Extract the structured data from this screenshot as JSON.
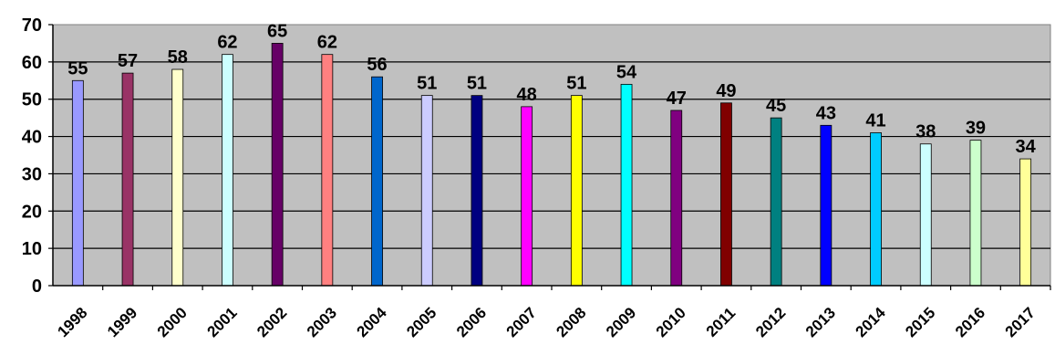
{
  "chart_data": {
    "type": "bar",
    "categories": [
      "1998",
      "1999",
      "2000",
      "2001",
      "2002",
      "2003",
      "2004",
      "2005",
      "2006",
      "2007",
      "2008",
      "2009",
      "2010",
      "2011",
      "2012",
      "2013",
      "2014",
      "2015",
      "2016",
      "2017"
    ],
    "values": [
      55,
      57,
      58,
      62,
      65,
      62,
      56,
      51,
      51,
      48,
      51,
      54,
      47,
      49,
      45,
      43,
      41,
      38,
      39,
      34
    ],
    "colors": [
      "#9999ff",
      "#993366",
      "#ffffcc",
      "#ccffff",
      "#660066",
      "#ff8080",
      "#0066cc",
      "#ccccff",
      "#000080",
      "#ff00ff",
      "#ffff00",
      "#00ffff",
      "#800080",
      "#800000",
      "#008080",
      "#0000ff",
      "#00ccff",
      "#ccffff",
      "#ccffcc",
      "#ffff99"
    ],
    "ylim": [
      0,
      70
    ],
    "yticks": [
      0,
      10,
      20,
      30,
      40,
      50,
      60,
      70
    ],
    "grid": true,
    "plot_background": "#c0c0c0",
    "title": "",
    "xlabel": "",
    "ylabel": ""
  }
}
